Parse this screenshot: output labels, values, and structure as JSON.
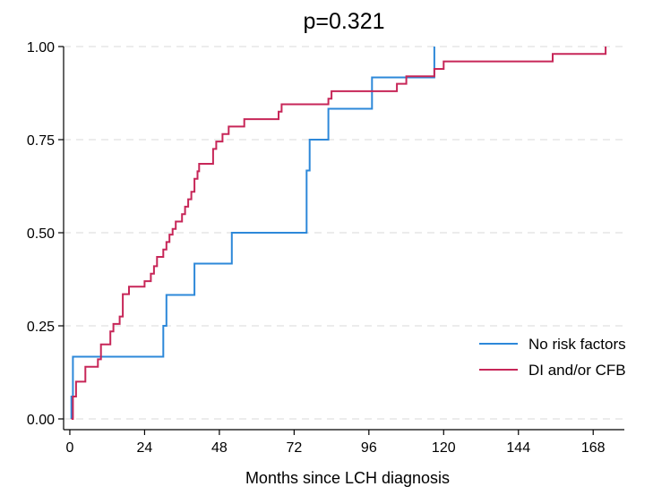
{
  "chart_data": {
    "type": "line",
    "step": true,
    "title": "p=0.321",
    "xlabel": "Months since LCH diagnosis",
    "ylabel": "",
    "xlim": [
      -2,
      178
    ],
    "ylim": [
      0,
      1
    ],
    "xticks": [
      0,
      24,
      48,
      72,
      96,
      120,
      144,
      168
    ],
    "yticks": [
      0,
      0.25,
      0.5,
      0.75,
      1.0
    ],
    "ytick_labels": [
      "0.00",
      "0.25",
      "0.50",
      "0.75",
      "1.00"
    ],
    "grid": true,
    "legend_position": "bottom-right",
    "series": [
      {
        "name": "No risk factors",
        "color": "#2d88d9",
        "points": [
          [
            0.5,
            0.0
          ],
          [
            0.5,
            0.06
          ],
          [
            1,
            0.167
          ],
          [
            30,
            0.167
          ],
          [
            30,
            0.25
          ],
          [
            31,
            0.333
          ],
          [
            40,
            0.417
          ],
          [
            52,
            0.5
          ],
          [
            76,
            0.5
          ],
          [
            76,
            0.667
          ],
          [
            77,
            0.75
          ],
          [
            83,
            0.833
          ],
          [
            97,
            0.917
          ],
          [
            117,
            0.917
          ],
          [
            117,
            1.0
          ]
        ]
      },
      {
        "name": "DI and/or CFB",
        "color": "#c72658",
        "points": [
          [
            0.5,
            0.0
          ],
          [
            1,
            0.06
          ],
          [
            2,
            0.1
          ],
          [
            5,
            0.14
          ],
          [
            9,
            0.16
          ],
          [
            10,
            0.2
          ],
          [
            13,
            0.235
          ],
          [
            14,
            0.255
          ],
          [
            16,
            0.275
          ],
          [
            17,
            0.335
          ],
          [
            19,
            0.355
          ],
          [
            24,
            0.37
          ],
          [
            26,
            0.39
          ],
          [
            27,
            0.41
          ],
          [
            28,
            0.435
          ],
          [
            30,
            0.455
          ],
          [
            31,
            0.475
          ],
          [
            32,
            0.495
          ],
          [
            33,
            0.51
          ],
          [
            34,
            0.53
          ],
          [
            36,
            0.55
          ],
          [
            37,
            0.57
          ],
          [
            38,
            0.59
          ],
          [
            39,
            0.61
          ],
          [
            40,
            0.645
          ],
          [
            41,
            0.665
          ],
          [
            41.5,
            0.685
          ],
          [
            46,
            0.725
          ],
          [
            47,
            0.745
          ],
          [
            49,
            0.765
          ],
          [
            51,
            0.785
          ],
          [
            56,
            0.805
          ],
          [
            67,
            0.825
          ],
          [
            68,
            0.845
          ],
          [
            83,
            0.86
          ],
          [
            84,
            0.88
          ],
          [
            105,
            0.9
          ],
          [
            108,
            0.92
          ],
          [
            117,
            0.94
          ],
          [
            120,
            0.96
          ],
          [
            155,
            0.98
          ],
          [
            172,
            1.0
          ]
        ]
      }
    ]
  }
}
